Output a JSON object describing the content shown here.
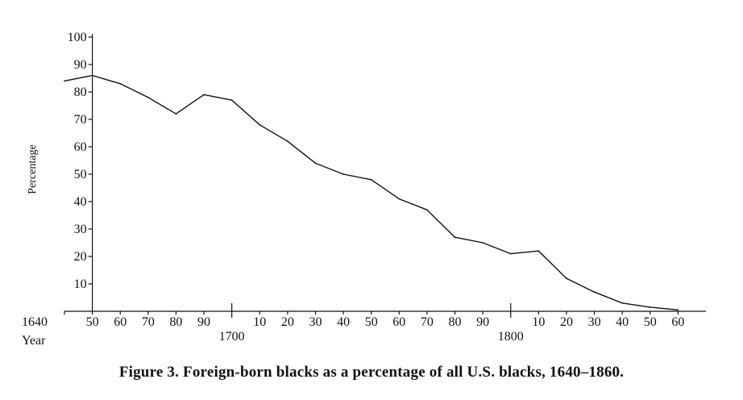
{
  "caption": "Figure 3. Foreign-born blacks as a percentage of all U.S. blacks, 1640–1860.",
  "chart_data": {
    "type": "line",
    "title": "Figure 3. Foreign-born blacks as a percentage of all U.S. blacks, 1640–1860.",
    "xlabel": "Year",
    "ylabel": "Percentage",
    "xlim": [
      1640,
      1870
    ],
    "ylim": [
      0,
      100
    ],
    "y_ticks": [
      10,
      20,
      30,
      40,
      50,
      60,
      70,
      80,
      90,
      100
    ],
    "x_tick_values": [
      1640,
      1650,
      1660,
      1670,
      1680,
      1690,
      1700,
      1710,
      1720,
      1730,
      1740,
      1750,
      1760,
      1770,
      1780,
      1790,
      1800,
      1810,
      1820,
      1830,
      1840,
      1850,
      1860
    ],
    "x_tick_labels": [
      "1640",
      "50",
      "60",
      "70",
      "80",
      "90",
      "",
      "10",
      "20",
      "30",
      "40",
      "50",
      "60",
      "70",
      "80",
      "90",
      "",
      "10",
      "20",
      "30",
      "40",
      "50",
      "60"
    ],
    "century_labels": [
      {
        "x": 1700,
        "label": "1700"
      },
      {
        "x": 1800,
        "label": "1800"
      }
    ],
    "grid": false,
    "series": [
      {
        "x": [
          1640,
          1650,
          1660,
          1670,
          1680,
          1690,
          1700,
          1710,
          1720,
          1730,
          1740,
          1750,
          1760,
          1770,
          1780,
          1790,
          1800,
          1810,
          1820,
          1830,
          1840,
          1850,
          1860
        ],
        "values": [
          84,
          86,
          83,
          78,
          72,
          79,
          77,
          68,
          62,
          54,
          50,
          48,
          41,
          37,
          27,
          25,
          21,
          22,
          12,
          7,
          3,
          1.5,
          0.5
        ]
      }
    ]
  }
}
